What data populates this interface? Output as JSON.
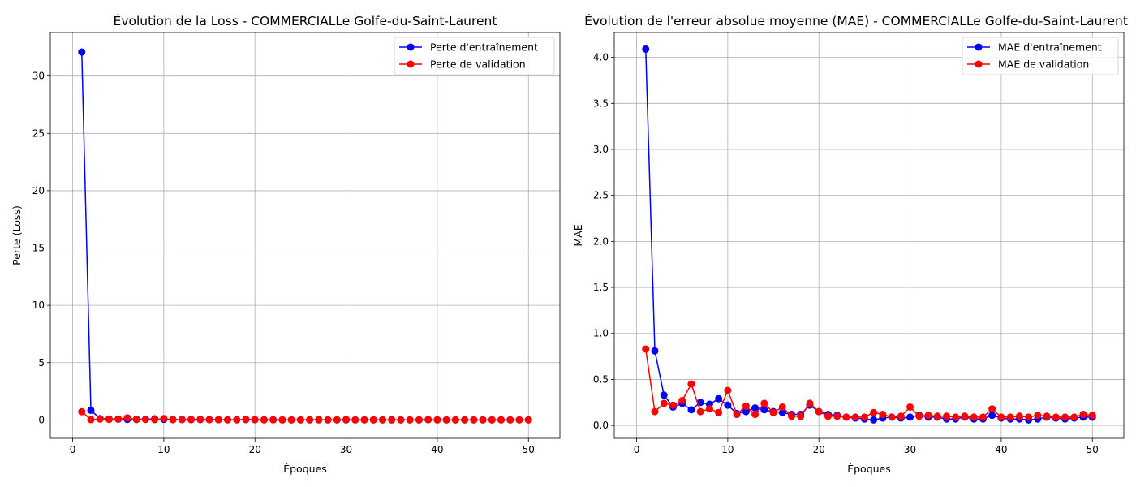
{
  "colors": {
    "train": "#0000ff",
    "val": "#ff0000",
    "grid": "#b0b0b0"
  },
  "chart_data": [
    {
      "type": "line",
      "title": "Évolution de la Loss - COMMERCIALLe Golfe-du-Saint-Laurent",
      "xlabel": "Époques",
      "ylabel": "Perte (Loss)",
      "xlim": [
        -2.45,
        53.45
      ],
      "ylim": [
        -1.6,
        33.8
      ],
      "xticks": [
        0,
        10,
        20,
        30,
        40,
        50
      ],
      "yticks": [
        0,
        5,
        10,
        15,
        20,
        25,
        30
      ],
      "grid": true,
      "legend_position": "top-right",
      "x": [
        1,
        2,
        3,
        4,
        5,
        6,
        7,
        8,
        9,
        10,
        11,
        12,
        13,
        14,
        15,
        16,
        17,
        18,
        19,
        20,
        21,
        22,
        23,
        24,
        25,
        26,
        27,
        28,
        29,
        30,
        31,
        32,
        33,
        34,
        35,
        36,
        37,
        38,
        39,
        40,
        41,
        42,
        43,
        44,
        45,
        46,
        47,
        48,
        49,
        50
      ],
      "series": [
        {
          "name": "Perte d'entraînement",
          "color": "#0000ff",
          "values": [
            32.1,
            0.85,
            0.12,
            0.08,
            0.07,
            0.05,
            0.06,
            0.06,
            0.1,
            0.05,
            0.03,
            0.03,
            0.04,
            0.03,
            0.03,
            0.02,
            0.02,
            0.02,
            0.03,
            0.02,
            0.02,
            0.02,
            0.01,
            0.01,
            0.01,
            0.01,
            0.01,
            0.01,
            0.01,
            0.01,
            0.01,
            0.01,
            0.01,
            0.01,
            0.01,
            0.01,
            0.01,
            0.01,
            0.02,
            0.01,
            0.01,
            0.01,
            0.01,
            0.01,
            0.01,
            0.01,
            0.01,
            0.01,
            0.01,
            0.01
          ]
        },
        {
          "name": "Perte de validation",
          "color": "#ff0000",
          "values": [
            0.72,
            0.03,
            0.08,
            0.05,
            0.08,
            0.18,
            0.03,
            0.05,
            0.03,
            0.12,
            0.02,
            0.05,
            0.02,
            0.06,
            0.02,
            0.03,
            0.01,
            0.01,
            0.06,
            0.03,
            0.01,
            0.01,
            0.01,
            0.01,
            0.01,
            0.02,
            0.02,
            0.01,
            0.01,
            0.04,
            0.01,
            0.01,
            0.01,
            0.01,
            0.01,
            0.01,
            0.01,
            0.01,
            0.03,
            0.01,
            0.01,
            0.01,
            0.01,
            0.01,
            0.01,
            0.01,
            0.01,
            0.01,
            0.01,
            0.01
          ]
        }
      ]
    },
    {
      "type": "line",
      "title": "Évolution de l'erreur absolue moyenne (MAE) - COMMERCIALLe Golfe-du-Saint-Laurent",
      "xlabel": "Époques",
      "ylabel": "MAE",
      "xlim": [
        -2.45,
        53.45
      ],
      "ylim": [
        -0.14,
        4.27
      ],
      "xticks": [
        0,
        10,
        20,
        30,
        40,
        50
      ],
      "yticks": [
        0.0,
        0.5,
        1.0,
        1.5,
        2.0,
        2.5,
        3.0,
        3.5,
        4.0
      ],
      "grid": true,
      "legend_position": "top-right",
      "x": [
        1,
        2,
        3,
        4,
        5,
        6,
        7,
        8,
        9,
        10,
        11,
        12,
        13,
        14,
        15,
        16,
        17,
        18,
        19,
        20,
        21,
        22,
        23,
        24,
        25,
        26,
        27,
        28,
        29,
        30,
        31,
        32,
        33,
        34,
        35,
        36,
        37,
        38,
        39,
        40,
        41,
        42,
        43,
        44,
        45,
        46,
        47,
        48,
        49,
        50
      ],
      "series": [
        {
          "name": "MAE d'entraînement",
          "color": "#0000ff",
          "values": [
            4.09,
            0.81,
            0.33,
            0.2,
            0.24,
            0.17,
            0.25,
            0.23,
            0.29,
            0.22,
            0.13,
            0.15,
            0.19,
            0.17,
            0.15,
            0.14,
            0.12,
            0.12,
            0.22,
            0.15,
            0.12,
            0.11,
            0.09,
            0.08,
            0.07,
            0.06,
            0.08,
            0.09,
            0.08,
            0.09,
            0.11,
            0.09,
            0.09,
            0.07,
            0.07,
            0.09,
            0.07,
            0.07,
            0.11,
            0.08,
            0.07,
            0.07,
            0.06,
            0.07,
            0.09,
            0.08,
            0.07,
            0.08,
            0.09,
            0.09
          ]
        },
        {
          "name": "MAE de validation",
          "color": "#ff0000",
          "values": [
            0.83,
            0.15,
            0.24,
            0.22,
            0.27,
            0.45,
            0.15,
            0.18,
            0.14,
            0.38,
            0.12,
            0.21,
            0.12,
            0.24,
            0.14,
            0.2,
            0.1,
            0.1,
            0.24,
            0.15,
            0.1,
            0.1,
            0.09,
            0.09,
            0.09,
            0.14,
            0.12,
            0.09,
            0.1,
            0.2,
            0.1,
            0.11,
            0.1,
            0.1,
            0.09,
            0.1,
            0.09,
            0.09,
            0.18,
            0.09,
            0.09,
            0.1,
            0.09,
            0.11,
            0.1,
            0.09,
            0.09,
            0.09,
            0.12,
            0.11
          ]
        }
      ]
    }
  ]
}
